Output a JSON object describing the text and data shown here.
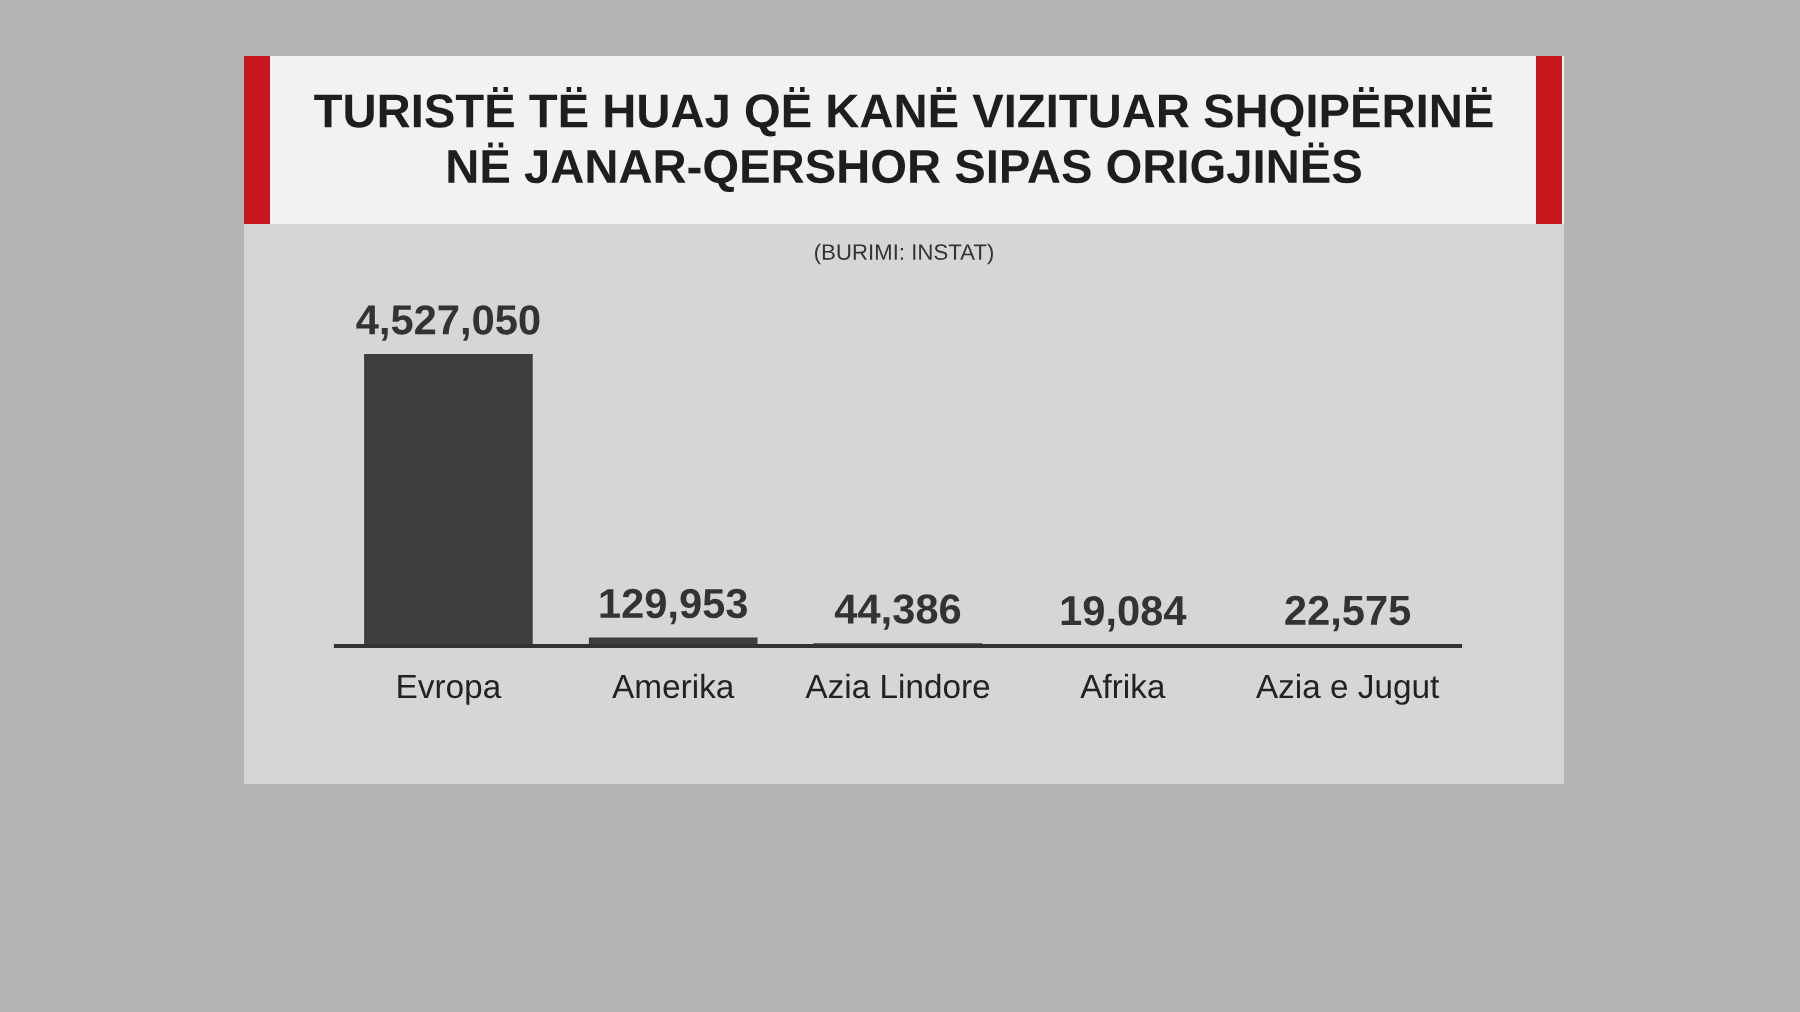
{
  "chart_data": {
    "type": "bar",
    "title": "TURISTË TË HUAJ QË KANË VIZITUAR SHQIPËRINË\nNË JANAR-QERSHOR SIPAS ORIGJINËS",
    "subtitle": "(BURIMI: INSTAT)",
    "categories": [
      "Evropa",
      "Amerika",
      "Azia Lindore",
      "Afrika",
      "Azia e Jugut"
    ],
    "values": [
      4527050,
      129953,
      44386,
      19084,
      22575
    ],
    "value_labels": [
      "4,527,050",
      "129,953",
      "44,386",
      "19,084",
      "22,575"
    ],
    "color": "#3d3d3d",
    "grid": false,
    "legend": false
  }
}
